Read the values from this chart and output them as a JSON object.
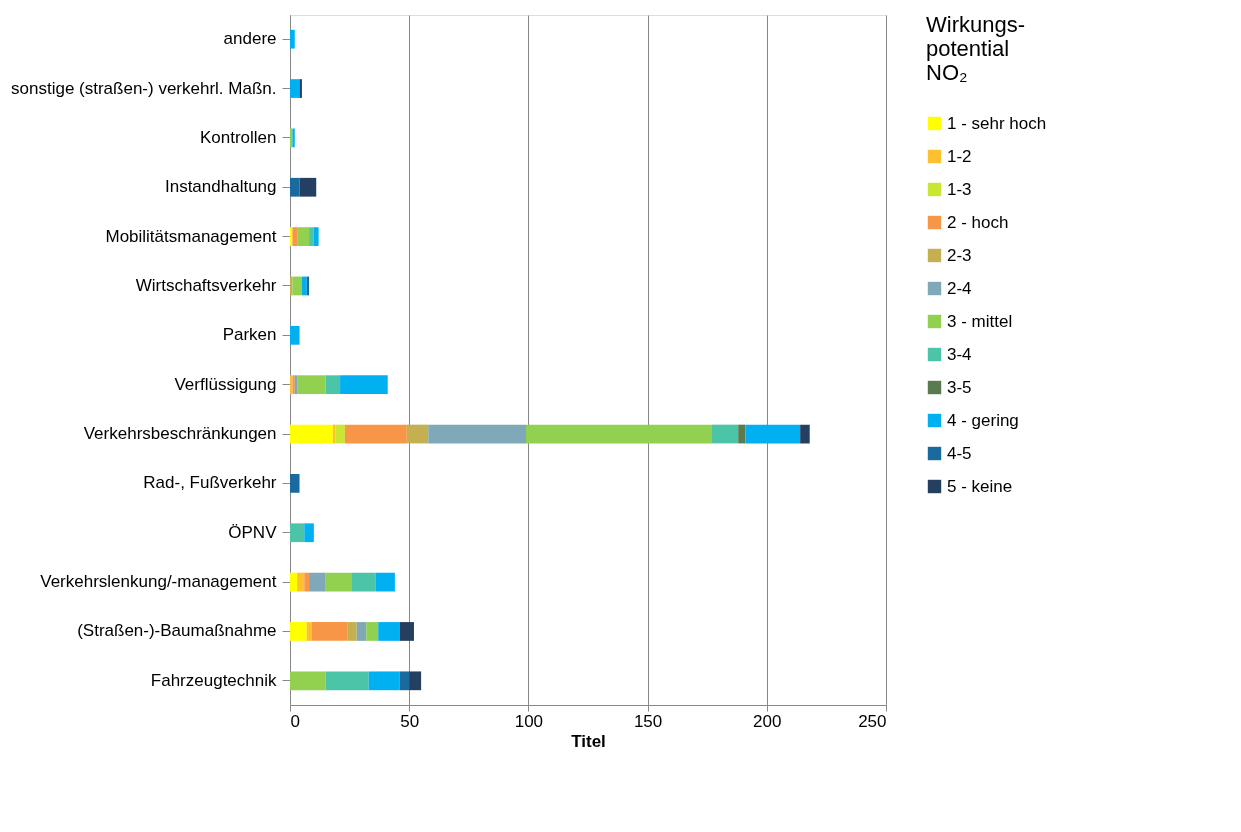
{
  "chart_data": {
    "type": "bar",
    "orientation": "horizontal",
    "stacked": true,
    "categories": [
      "andere",
      "sonstige (straßen-) verkehrl. Maßn.",
      "Kontrollen",
      "Instandhaltung",
      "Mobilitätsmanagement",
      "Wirtschaftsverkehr",
      "Parken",
      "Verflüssigung",
      "Verkehrsbeschränkungen",
      "Rad-, Fußverkehr",
      "ÖPNV",
      "Verkehrslenkung/-management",
      "(Straßen-)-Baumaßnahme",
      "Fahrzeugtechnik"
    ],
    "xlabel": "Titel",
    "legend_title": "Wirkungs-\npotential\nNO₂",
    "xlim": [
      0,
      250
    ],
    "xticks": [
      0,
      50,
      100,
      150,
      200,
      250
    ],
    "grid": "x",
    "legend": "right",
    "series": [
      {
        "name": "1  -  sehr hoch",
        "color": "#ffff00",
        "values": [
          null,
          null,
          null,
          null,
          1,
          null,
          null,
          null,
          18,
          null,
          null,
          3,
          7,
          null
        ]
      },
      {
        "name": "1-2",
        "color": "#fcc030",
        "values": [
          null,
          null,
          null,
          null,
          null,
          null,
          null,
          1,
          1,
          null,
          null,
          3,
          2,
          null
        ]
      },
      {
        "name": "1-3",
        "color": "#c8e632",
        "values": [
          null,
          null,
          null,
          null,
          null,
          null,
          null,
          null,
          4,
          null,
          null,
          null,
          null,
          null
        ]
      },
      {
        "name": "2  -  hoch",
        "color": "#f79646",
        "values": [
          null,
          null,
          null,
          null,
          2,
          null,
          null,
          1,
          26,
          null,
          null,
          2,
          15,
          null
        ]
      },
      {
        "name": "2-3",
        "color": "#c4b050",
        "values": [
          null,
          null,
          null,
          null,
          null,
          1,
          null,
          null,
          9,
          null,
          null,
          null,
          4,
          null
        ]
      },
      {
        "name": "2-4",
        "color": "#7fa8b8",
        "values": [
          null,
          null,
          null,
          null,
          null,
          null,
          null,
          1,
          41,
          null,
          null,
          7,
          4,
          null
        ]
      },
      {
        "name": "3 - mittel",
        "color": "#92d050",
        "values": [
          null,
          null,
          1,
          null,
          5,
          4,
          null,
          12,
          78,
          null,
          null,
          11,
          5,
          15
        ]
      },
      {
        "name": "3-4",
        "color": "#4cc4a8",
        "values": [
          null,
          null,
          null,
          null,
          2,
          null,
          null,
          6,
          11,
          null,
          6,
          10,
          null,
          18
        ]
      },
      {
        "name": "3-5",
        "color": "#5a7a50",
        "values": [
          null,
          null,
          null,
          null,
          null,
          null,
          null,
          null,
          3,
          null,
          null,
          null,
          null,
          null
        ]
      },
      {
        "name": "4 - gering",
        "color": "#00b0f0",
        "values": [
          2,
          4,
          1,
          null,
          2,
          2,
          4,
          20,
          23,
          null,
          4,
          8,
          9,
          13
        ]
      },
      {
        "name": "4-5",
        "color": "#1a6aa0",
        "values": [
          null,
          null,
          null,
          4,
          null,
          1,
          null,
          null,
          null,
          4,
          null,
          null,
          null,
          4
        ]
      },
      {
        "name": "5 - keine",
        "color": "#243f60",
        "values": [
          null,
          1,
          null,
          7,
          null,
          null,
          null,
          null,
          4,
          null,
          null,
          null,
          6,
          5
        ]
      }
    ]
  }
}
